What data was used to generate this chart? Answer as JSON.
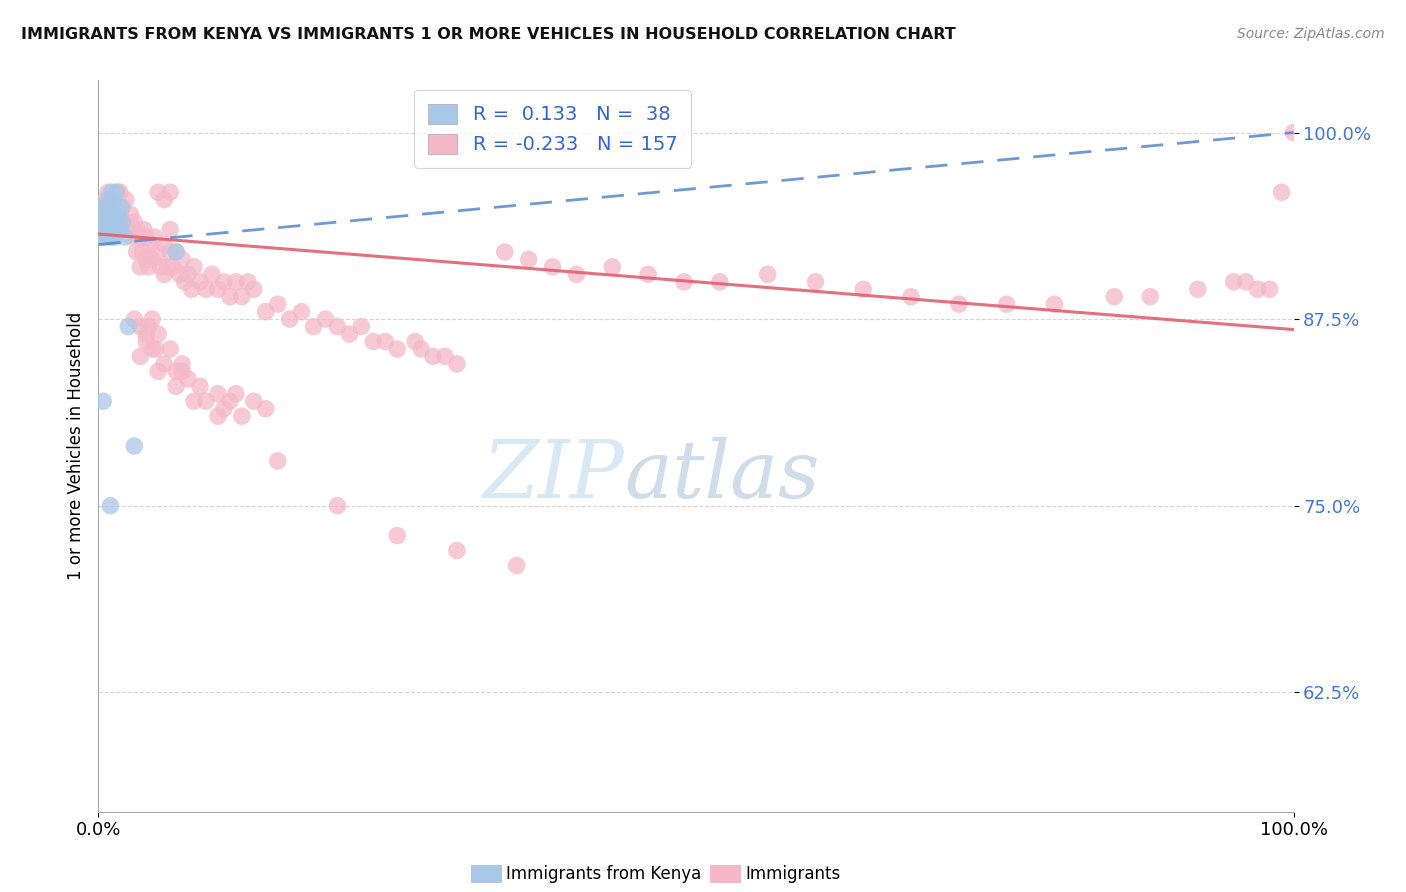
{
  "title": "IMMIGRANTS FROM KENYA VS IMMIGRANTS 1 OR MORE VEHICLES IN HOUSEHOLD CORRELATION CHART",
  "source": "Source: ZipAtlas.com",
  "ylabel": "1 or more Vehicles in Household",
  "ytick_labels": [
    "62.5%",
    "75.0%",
    "87.5%",
    "100.0%"
  ],
  "ytick_values": [
    0.625,
    0.75,
    0.875,
    1.0
  ],
  "legend_1_label": "Immigrants from Kenya",
  "legend_2_label": "Immigrants",
  "r1": 0.133,
  "n1": 38,
  "r2": -0.233,
  "n2": 157,
  "color_blue": "#a8c8e8",
  "color_pink": "#f4b8c8",
  "color_blue_line": "#5588cc",
  "color_pink_line": "#e06070",
  "watermark_text": "ZIPatlas",
  "xlim": [
    0.0,
    1.0
  ],
  "ylim": [
    0.545,
    1.035
  ],
  "blue_trend_x": [
    0.0,
    1.0
  ],
  "blue_trend_y": [
    0.925,
    1.0
  ],
  "pink_trend_x": [
    0.0,
    1.0
  ],
  "pink_trend_y": [
    0.932,
    0.868
  ],
  "blue_x": [
    0.002,
    0.003,
    0.004,
    0.004,
    0.005,
    0.005,
    0.006,
    0.006,
    0.007,
    0.007,
    0.008,
    0.008,
    0.009,
    0.009,
    0.01,
    0.01,
    0.011,
    0.011,
    0.012,
    0.012,
    0.013,
    0.013,
    0.014,
    0.014,
    0.015,
    0.015,
    0.016,
    0.017,
    0.018,
    0.019,
    0.02,
    0.022,
    0.004,
    0.025,
    0.01,
    0.03,
    0.065
  ],
  "blue_y": [
    0.94,
    0.935,
    0.93,
    0.945,
    0.935,
    0.95,
    0.93,
    0.945,
    0.935,
    0.95,
    0.94,
    0.955,
    0.935,
    0.95,
    0.94,
    0.93,
    0.945,
    0.96,
    0.94,
    0.955,
    0.935,
    0.95,
    0.945,
    0.93,
    0.94,
    0.96,
    0.945,
    0.94,
    0.935,
    0.95,
    0.94,
    0.93,
    0.82,
    0.87,
    0.75,
    0.79,
    0.92
  ],
  "pink_x": [
    0.002,
    0.003,
    0.004,
    0.005,
    0.006,
    0.006,
    0.007,
    0.007,
    0.008,
    0.008,
    0.009,
    0.009,
    0.01,
    0.01,
    0.011,
    0.012,
    0.012,
    0.013,
    0.013,
    0.014,
    0.015,
    0.015,
    0.016,
    0.016,
    0.017,
    0.018,
    0.018,
    0.019,
    0.02,
    0.021,
    0.022,
    0.023,
    0.025,
    0.027,
    0.028,
    0.03,
    0.032,
    0.032,
    0.035,
    0.035,
    0.037,
    0.038,
    0.04,
    0.04,
    0.042,
    0.043,
    0.045,
    0.047,
    0.05,
    0.052,
    0.055,
    0.055,
    0.058,
    0.06,
    0.06,
    0.062,
    0.065,
    0.068,
    0.07,
    0.072,
    0.075,
    0.078,
    0.08,
    0.085,
    0.09,
    0.095,
    0.1,
    0.105,
    0.11,
    0.115,
    0.12,
    0.125,
    0.13,
    0.14,
    0.15,
    0.16,
    0.17,
    0.18,
    0.19,
    0.2,
    0.21,
    0.22,
    0.23,
    0.24,
    0.25,
    0.265,
    0.27,
    0.28,
    0.29,
    0.3,
    0.03,
    0.035,
    0.04,
    0.042,
    0.045,
    0.048,
    0.05,
    0.035,
    0.04,
    0.045,
    0.05,
    0.055,
    0.06,
    0.065,
    0.07,
    0.065,
    0.07,
    0.075,
    0.08,
    0.085,
    0.09,
    0.1,
    0.1,
    0.105,
    0.11,
    0.115,
    0.12,
    0.13,
    0.14,
    0.05,
    0.055,
    0.06,
    0.34,
    0.36,
    0.38,
    0.4,
    0.43,
    0.46,
    0.49,
    0.52,
    0.56,
    0.6,
    0.64,
    0.68,
    0.72,
    0.76,
    0.8,
    0.85,
    0.88,
    0.92,
    0.95,
    0.96,
    0.97,
    0.98,
    0.99,
    1.0,
    0.15,
    0.2,
    0.25,
    0.3,
    0.35
  ],
  "pink_y": [
    0.94,
    0.945,
    0.935,
    0.95,
    0.94,
    0.955,
    0.935,
    0.95,
    0.94,
    0.96,
    0.935,
    0.95,
    0.945,
    0.93,
    0.955,
    0.94,
    0.955,
    0.935,
    0.95,
    0.94,
    0.935,
    0.95,
    0.94,
    0.96,
    0.935,
    0.945,
    0.96,
    0.94,
    0.95,
    0.935,
    0.94,
    0.955,
    0.935,
    0.945,
    0.93,
    0.94,
    0.92,
    0.935,
    0.91,
    0.93,
    0.92,
    0.935,
    0.915,
    0.93,
    0.91,
    0.925,
    0.915,
    0.93,
    0.92,
    0.91,
    0.905,
    0.925,
    0.91,
    0.92,
    0.935,
    0.91,
    0.92,
    0.905,
    0.915,
    0.9,
    0.905,
    0.895,
    0.91,
    0.9,
    0.895,
    0.905,
    0.895,
    0.9,
    0.89,
    0.9,
    0.89,
    0.9,
    0.895,
    0.88,
    0.885,
    0.875,
    0.88,
    0.87,
    0.875,
    0.87,
    0.865,
    0.87,
    0.86,
    0.86,
    0.855,
    0.86,
    0.855,
    0.85,
    0.85,
    0.845,
    0.875,
    0.87,
    0.865,
    0.87,
    0.875,
    0.855,
    0.865,
    0.85,
    0.86,
    0.855,
    0.84,
    0.845,
    0.855,
    0.84,
    0.845,
    0.83,
    0.84,
    0.835,
    0.82,
    0.83,
    0.82,
    0.825,
    0.81,
    0.815,
    0.82,
    0.825,
    0.81,
    0.82,
    0.815,
    0.96,
    0.955,
    0.96,
    0.92,
    0.915,
    0.91,
    0.905,
    0.91,
    0.905,
    0.9,
    0.9,
    0.905,
    0.9,
    0.895,
    0.89,
    0.885,
    0.885,
    0.885,
    0.89,
    0.89,
    0.895,
    0.9,
    0.9,
    0.895,
    0.895,
    0.96,
    1.0,
    0.78,
    0.75,
    0.73,
    0.72,
    0.71
  ]
}
